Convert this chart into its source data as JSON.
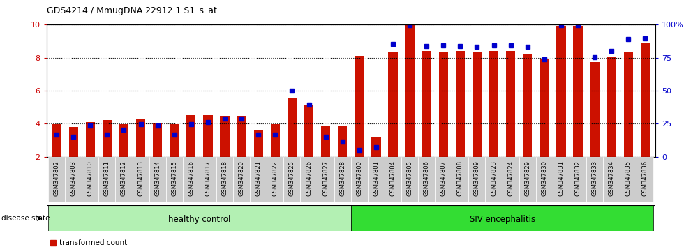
{
  "title": "GDS4214 / MmugDNA.22912.1.S1_s_at",
  "samples": [
    "GSM347802",
    "GSM347803",
    "GSM347810",
    "GSM347811",
    "GSM347812",
    "GSM347813",
    "GSM347814",
    "GSM347815",
    "GSM347816",
    "GSM347817",
    "GSM347818",
    "GSM347820",
    "GSM347821",
    "GSM347822",
    "GSM347825",
    "GSM347826",
    "GSM347827",
    "GSM347828",
    "GSM347800",
    "GSM347801",
    "GSM347804",
    "GSM347805",
    "GSM347806",
    "GSM347807",
    "GSM347808",
    "GSM347809",
    "GSM347823",
    "GSM347824",
    "GSM347829",
    "GSM347830",
    "GSM347831",
    "GSM347832",
    "GSM347833",
    "GSM347834",
    "GSM347835",
    "GSM347836"
  ],
  "red_values": [
    3.97,
    3.82,
    4.12,
    4.21,
    3.99,
    4.32,
    4.01,
    3.97,
    4.51,
    4.51,
    4.48,
    4.48,
    3.62,
    3.97,
    5.58,
    5.18,
    3.83,
    3.83,
    8.12,
    3.22,
    8.38,
    9.98,
    8.42,
    8.38,
    8.42,
    8.38,
    8.42,
    8.42,
    8.22,
    7.92,
    9.95,
    9.95,
    7.72,
    8.05,
    8.32,
    8.92
  ],
  "blue_values_left_axis": [
    3.35,
    3.22,
    3.88,
    3.35,
    3.65,
    3.97,
    3.88,
    3.35,
    3.97,
    4.12,
    4.32,
    4.32,
    3.35,
    3.35,
    6.02,
    5.18,
    3.22,
    2.92,
    2.42,
    2.58,
    8.85,
    9.98,
    8.72,
    8.75,
    8.72,
    8.65,
    8.75,
    8.75,
    8.65,
    7.92,
    9.98,
    9.98,
    8.02,
    8.42,
    9.12,
    9.18
  ],
  "group_labels": [
    "healthy control",
    "SIV encephalitis"
  ],
  "group_colors": [
    "#b3f0b3",
    "#33dd33"
  ],
  "group_boundaries": [
    0,
    18,
    36
  ],
  "ylim_left": [
    2,
    10
  ],
  "ylim_right": [
    0,
    100
  ],
  "yticks_left": [
    2,
    4,
    6,
    8,
    10
  ],
  "yticks_right": [
    0,
    25,
    50,
    75,
    100
  ],
  "bar_color_red": "#cc1100",
  "bar_color_blue": "#0000cc",
  "bg_color_plot": "#ffffff",
  "bg_color_xtick": "#cccccc",
  "axis_color_left": "#cc0000",
  "axis_color_right": "#0000cc",
  "right_tick_labels": [
    "0",
    "25",
    "50",
    "75",
    "100%"
  ]
}
